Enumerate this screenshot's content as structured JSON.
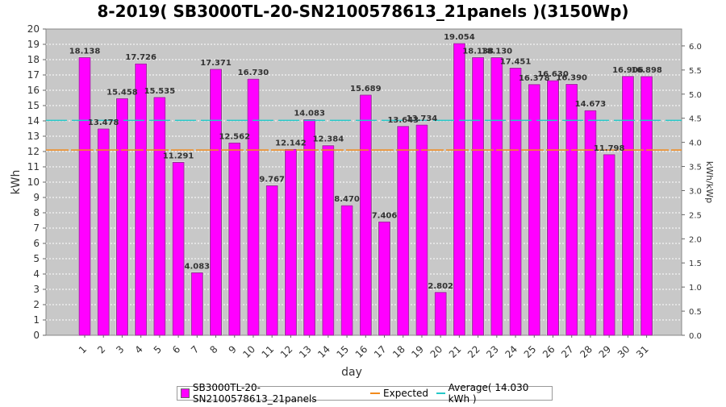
{
  "title": "8-2019( SB3000TL-20-SN2100578613_21panels )(3150Wp)",
  "colors": {
    "bar": "#ff00ff",
    "expected": "#f28a1c",
    "average": "#25c8c8",
    "plot_bg": "#c8c8c8"
  },
  "legend": {
    "series_label": "SB3000TL-20-SN2100578613_21panels",
    "expected_label": "Expected",
    "average_label": "Average( 14.030 kWh )"
  },
  "chart_data": {
    "type": "bar",
    "xlabel": "day",
    "ylabel": "kWh",
    "y2label": "kWh/kWp",
    "ylim": [
      0,
      20
    ],
    "y2lim": [
      0,
      6.35
    ],
    "yticks": [
      0,
      1,
      2,
      3,
      4,
      5,
      6,
      7,
      8,
      9,
      10,
      11,
      12,
      13,
      14,
      15,
      16,
      17,
      18,
      19,
      20
    ],
    "y2ticks": [
      "0.0",
      "0.5",
      "1.0",
      "1.5",
      "2.0",
      "2.5",
      "3.0",
      "3.5",
      "4.0",
      "4.5",
      "5.0",
      "5.5",
      "6.0"
    ],
    "categories": [
      "1",
      "2",
      "3",
      "4",
      "5",
      "6",
      "7",
      "8",
      "9",
      "10",
      "11",
      "12",
      "13",
      "14",
      "15",
      "16",
      "17",
      "18",
      "19",
      "20",
      "21",
      "22",
      "23",
      "24",
      "25",
      "26",
      "27",
      "28",
      "29",
      "30",
      "31"
    ],
    "values": [
      18.138,
      13.478,
      15.458,
      17.726,
      15.535,
      11.291,
      4.083,
      17.371,
      12.562,
      16.73,
      9.767,
      12.142,
      14.083,
      12.384,
      8.47,
      15.689,
      7.406,
      13.643,
      13.734,
      2.802,
      19.054,
      18.138,
      18.13,
      17.451,
      16.378,
      16.63,
      16.39,
      14.673,
      11.798,
      16.906,
      16.898
    ],
    "value_labels": [
      "18.138",
      "13.478",
      "15.458",
      "17.726",
      "15.535",
      "11.291",
      "4.083",
      "17.371",
      "12.562",
      "16.730",
      "9.767",
      "12.142",
      "14.083",
      "12.384",
      "8.470",
      "15.689",
      "7.406",
      "13.643",
      "13.734",
      "2.802",
      "19.054",
      "18.138",
      "18.130",
      "17.451",
      "16.378",
      "16.630",
      "16.390",
      "14.673",
      "11.798",
      "16.906",
      "16.898"
    ],
    "expected": 12.1,
    "average": 14.03,
    "grid": true,
    "legend_position": "bottom"
  }
}
